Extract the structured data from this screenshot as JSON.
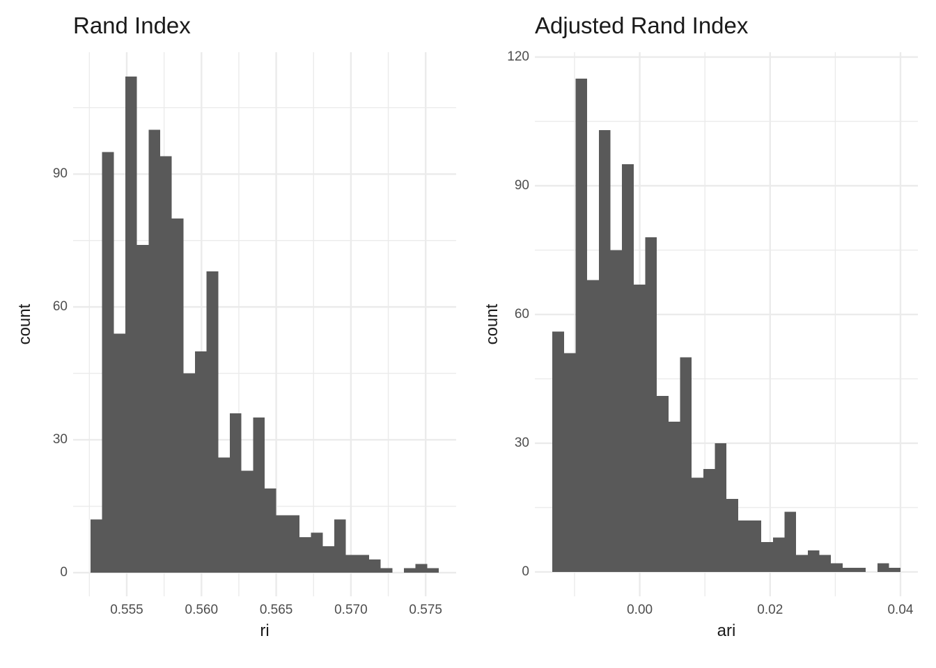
{
  "colors": {
    "background": "#FFFFFF",
    "bar_fill": "#595959",
    "grid": "#EBEBEB",
    "tick_label": "#4D4D4D",
    "text": "#1A1A1A"
  },
  "chart_data": [
    {
      "type": "bar",
      "subtype": "histogram",
      "title": "Rand Index",
      "xlabel": "ri",
      "ylabel": "count",
      "legend": false,
      "grid": true,
      "xlim": [
        0.551412,
        0.577041
      ],
      "ylim": [
        -5.34,
        117.52
      ],
      "bin_start": 0.552578,
      "bin_width": 0.00077663,
      "counts": [
        12,
        95,
        54,
        112,
        74,
        100,
        94,
        80,
        45,
        50,
        68,
        26,
        36,
        23,
        35,
        19,
        13,
        13,
        8,
        9,
        6,
        12,
        4,
        4,
        3,
        1,
        0,
        1,
        2,
        1
      ],
      "x_ticks": [
        {
          "value": 0.555,
          "label": "0.555"
        },
        {
          "value": 0.56,
          "label": "0.560"
        },
        {
          "value": 0.565,
          "label": "0.565"
        },
        {
          "value": 0.57,
          "label": "0.570"
        },
        {
          "value": 0.575,
          "label": "0.575"
        }
      ],
      "x_minor": [
        0.5525,
        0.5575,
        0.5625,
        0.5675,
        0.5725
      ],
      "y_ticks": [
        {
          "value": 0,
          "label": "0"
        },
        {
          "value": 30,
          "label": "30"
        },
        {
          "value": 60,
          "label": "60"
        },
        {
          "value": 90,
          "label": "90"
        }
      ],
      "y_minor": [
        15,
        45,
        75,
        105
      ]
    },
    {
      "type": "bar",
      "subtype": "histogram",
      "title": "Adjusted Rand Index",
      "xlabel": "ari",
      "ylabel": "count",
      "legend": false,
      "grid": true,
      "xlim": [
        -0.01609,
        0.042671
      ],
      "ylim": [
        -5.68,
        121.13
      ],
      "bin_start": -0.013393,
      "bin_width": 0.0017806,
      "counts": [
        56,
        51,
        115,
        68,
        103,
        75,
        95,
        67,
        78,
        41,
        35,
        50,
        22,
        24,
        30,
        17,
        12,
        12,
        7,
        8,
        14,
        4,
        5,
        4,
        2,
        1,
        1,
        0,
        2,
        1
      ],
      "x_ticks": [
        {
          "value": 0.0,
          "label": "0.00"
        },
        {
          "value": 0.02,
          "label": "0.02"
        },
        {
          "value": 0.04,
          "label": "0.04"
        }
      ],
      "x_minor": [
        -0.01,
        0.01,
        0.03
      ],
      "y_ticks": [
        {
          "value": 0,
          "label": "0"
        },
        {
          "value": 30,
          "label": "30"
        },
        {
          "value": 60,
          "label": "60"
        },
        {
          "value": 90,
          "label": "90"
        },
        {
          "value": 120,
          "label": "120"
        }
      ],
      "y_minor": [
        15,
        45,
        75,
        105
      ]
    }
  ]
}
